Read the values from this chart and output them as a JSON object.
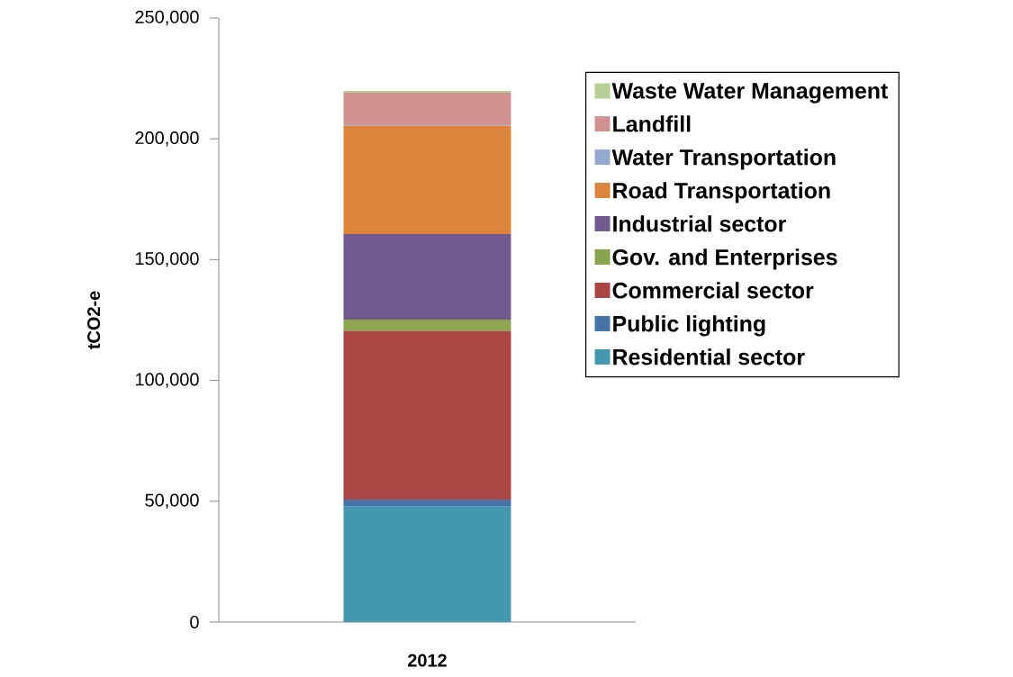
{
  "chart_data": {
    "type": "bar",
    "stacked": true,
    "ylabel": "tCO2-e",
    "categories": [
      "2012"
    ],
    "ylim": [
      0,
      250000
    ],
    "yticks": [
      0,
      {
        "value": 50000,
        "label": "50,000"
      },
      {
        "value": 100000,
        "label": "100,000"
      },
      {
        "value": 150000,
        "label": "150,000"
      },
      {
        "value": 200000,
        "label": "200,000"
      },
      {
        "value": 250000,
        "label": "250,000"
      }
    ],
    "legend": "right",
    "grid": false,
    "series": [
      {
        "name": "Residential sector",
        "color": "#4398b0",
        "values": [
          47800
        ]
      },
      {
        "name": "Public lighting",
        "color": "#4673a8",
        "values": [
          2900
        ]
      },
      {
        "name": "Commercial sector",
        "color": "#aa4744",
        "values": [
          69800
        ]
      },
      {
        "name": "Gov. and Enterprises",
        "color": "#8aa54e",
        "values": [
          4700
        ]
      },
      {
        "name": "Industrial sector",
        "color": "#725990",
        "values": [
          35400
        ]
      },
      {
        "name": "Road Transportation",
        "color": "#db843c",
        "values": [
          44800
        ]
      },
      {
        "name": "Water Transportation",
        "color": "#93a9cf",
        "values": [
          300
        ]
      },
      {
        "name": "Landfill",
        "color": "#d19392",
        "values": [
          13400
        ]
      },
      {
        "name": "Waste Water Management",
        "color": "#b9cd96",
        "values": [
          700
        ]
      }
    ]
  }
}
